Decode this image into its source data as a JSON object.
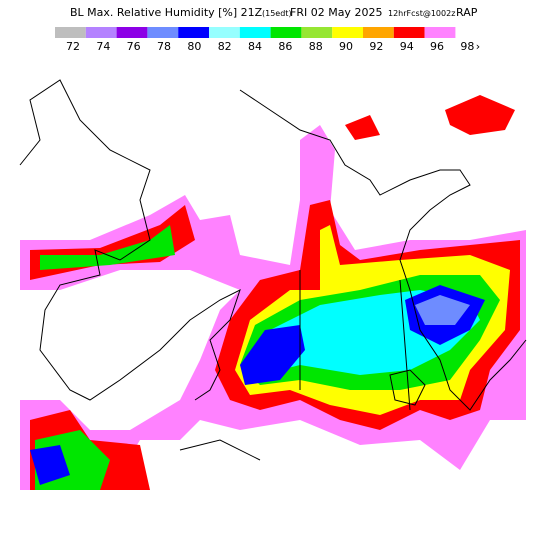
{
  "header": {
    "title_main": "BL Max. Relative Humidity [%] 21Z",
    "title_time_note": "(15edt)",
    "title_date": "FRI 02 May 2025",
    "title_fcst": "12hrFcst@1002z",
    "title_model": "RAP"
  },
  "legend": {
    "colors": [
      "#bebebe",
      "#b482ff",
      "#8c00e6",
      "#6e8cff",
      "#0000ff",
      "#96ffff",
      "#00ffff",
      "#00e600",
      "#96e632",
      "#ffff00",
      "#ffa500",
      "#ff0000",
      "#ff82ff"
    ],
    "labels": [
      "72",
      "74",
      "76",
      "78",
      "80",
      "82",
      "84",
      "86",
      "88",
      "90",
      "92",
      "94",
      "96",
      "98"
    ],
    "more": "›"
  }
}
